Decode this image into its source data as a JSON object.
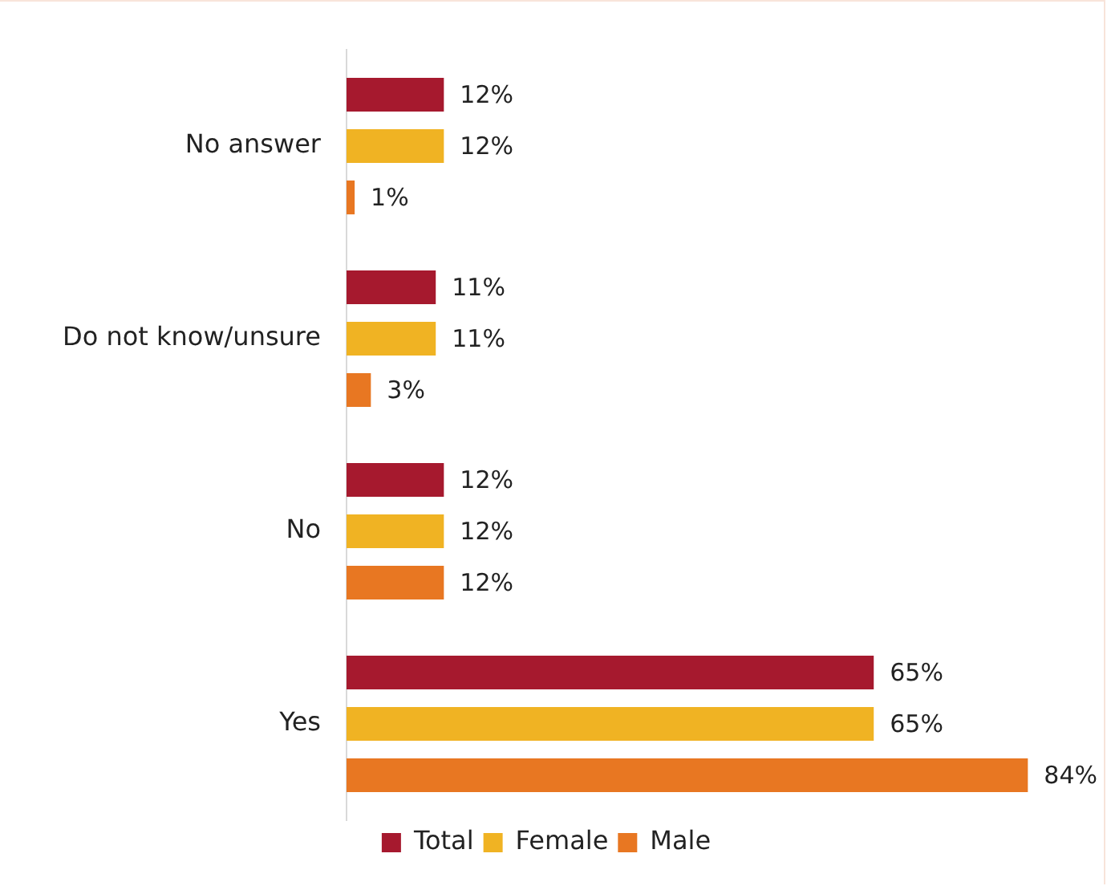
{
  "chart_data": {
    "type": "bar",
    "orientation": "horizontal",
    "categories": [
      "No answer",
      "Do not know/unsure",
      "No",
      "Yes"
    ],
    "series": [
      {
        "name": "Total",
        "color": "#a6192e",
        "values": [
          12,
          11,
          12,
          65
        ],
        "value_labels": [
          "12%",
          "11%",
          "12%",
          "65%"
        ]
      },
      {
        "name": "Female",
        "color": "#f0b323",
        "values": [
          12,
          11,
          12,
          65
        ],
        "value_labels": [
          "12%",
          "11%",
          "12%",
          "65%"
        ]
      },
      {
        "name": "Male",
        "color": "#e87722",
        "values": [
          1,
          3,
          12,
          84
        ],
        "value_labels": [
          "1%",
          "3%",
          "12%",
          "84%"
        ]
      }
    ],
    "legend": "bottom",
    "tick_labels": "y"
  }
}
